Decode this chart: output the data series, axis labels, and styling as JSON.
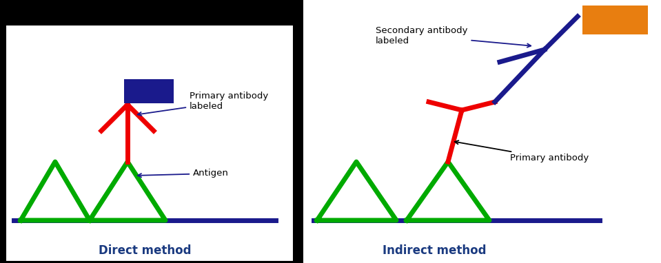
{
  "fig_width": 9.59,
  "fig_height": 3.82,
  "dpi": 100,
  "black_bg": "#000000",
  "white_bg": "#ffffff",
  "green": "#00aa00",
  "red": "#ee0000",
  "dark_blue": "#1a1a8c",
  "orange": "#e87e10",
  "lw": 5,
  "text_blue": "#1a3a80",
  "direct_label": "Direct method",
  "indirect_label": "Indirect method",
  "primary_labeled_text": "Primary antibody\nlabeled",
  "antigen_text": "Antigen",
  "secondary_labeled_text": "Secondary antibody\nlabeled",
  "primary_ab_text": "Primary antibody",
  "annotation_arrow_color": "#1a1a8c",
  "primary_ab_arrow_color": "#000000"
}
